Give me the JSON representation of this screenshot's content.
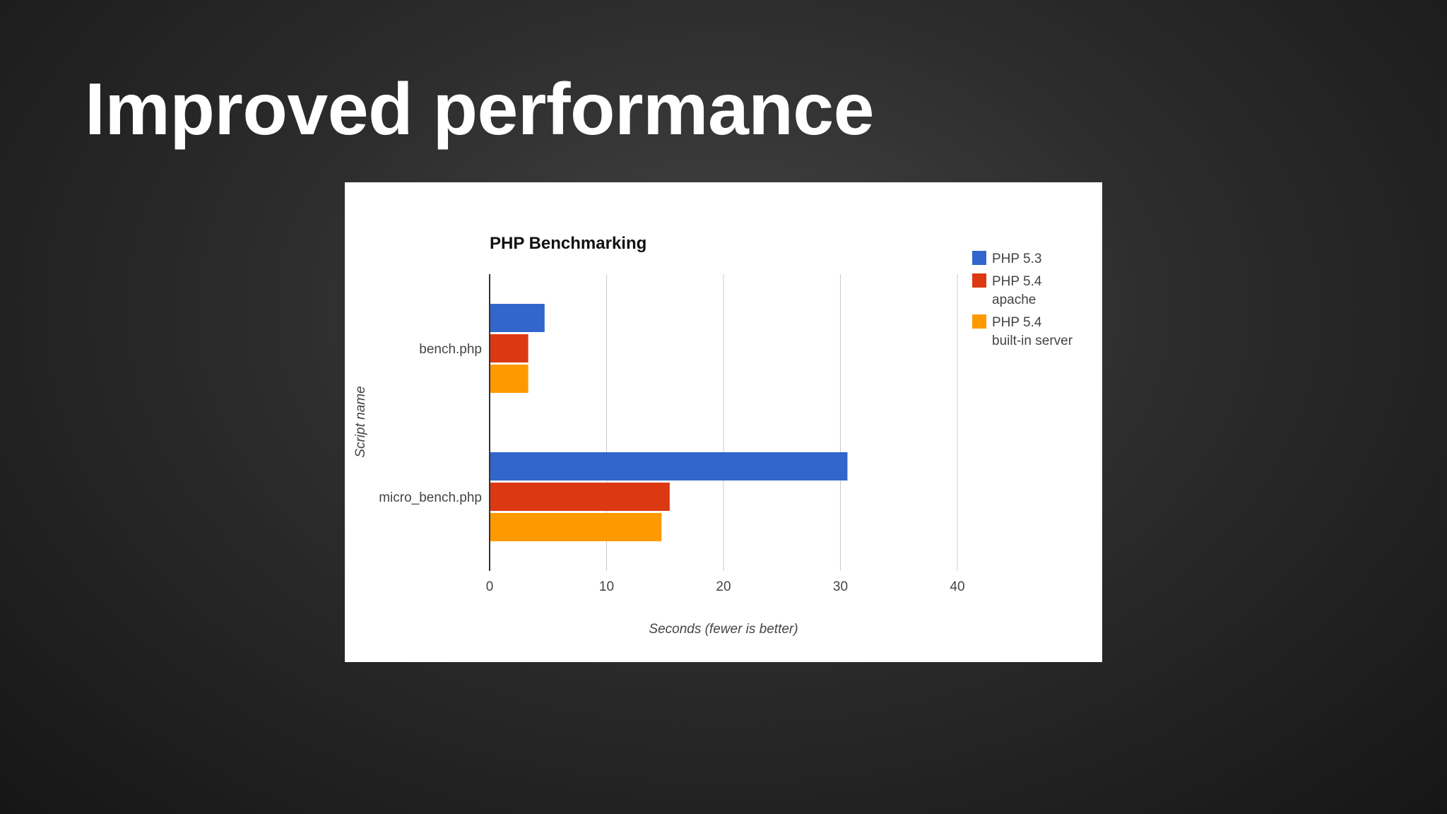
{
  "slide": {
    "title": "Improved performance"
  },
  "chart_data": {
    "type": "bar",
    "orientation": "horizontal",
    "title": "PHP Benchmarking",
    "xlabel": "Seconds (fewer is better)",
    "ylabel": "Script name",
    "categories": [
      "bench.php",
      "micro_bench.php"
    ],
    "series": [
      {
        "name": "PHP 5.3",
        "values": [
          4.7,
          30.6
        ],
        "color": "#3366cc"
      },
      {
        "name": "PHP 5.4 apache",
        "values": [
          3.3,
          15.4
        ],
        "color": "#dc3912"
      },
      {
        "name": "PHP 5.4 built-in server",
        "values": [
          3.3,
          14.7
        ],
        "color": "#ff9900"
      }
    ],
    "xlim": [
      0,
      40
    ],
    "ticks": [
      0,
      10,
      20,
      30,
      40
    ],
    "grid": true,
    "legend": {
      "placement": "right",
      "entries": [
        {
          "label": "PHP 5.3",
          "sub": "",
          "color": "#3366cc"
        },
        {
          "label": "PHP 5.4",
          "sub": "apache",
          "color": "#dc3912"
        },
        {
          "label": "PHP 5.4",
          "sub": "built-in server",
          "color": "#ff9900"
        }
      ]
    }
  }
}
